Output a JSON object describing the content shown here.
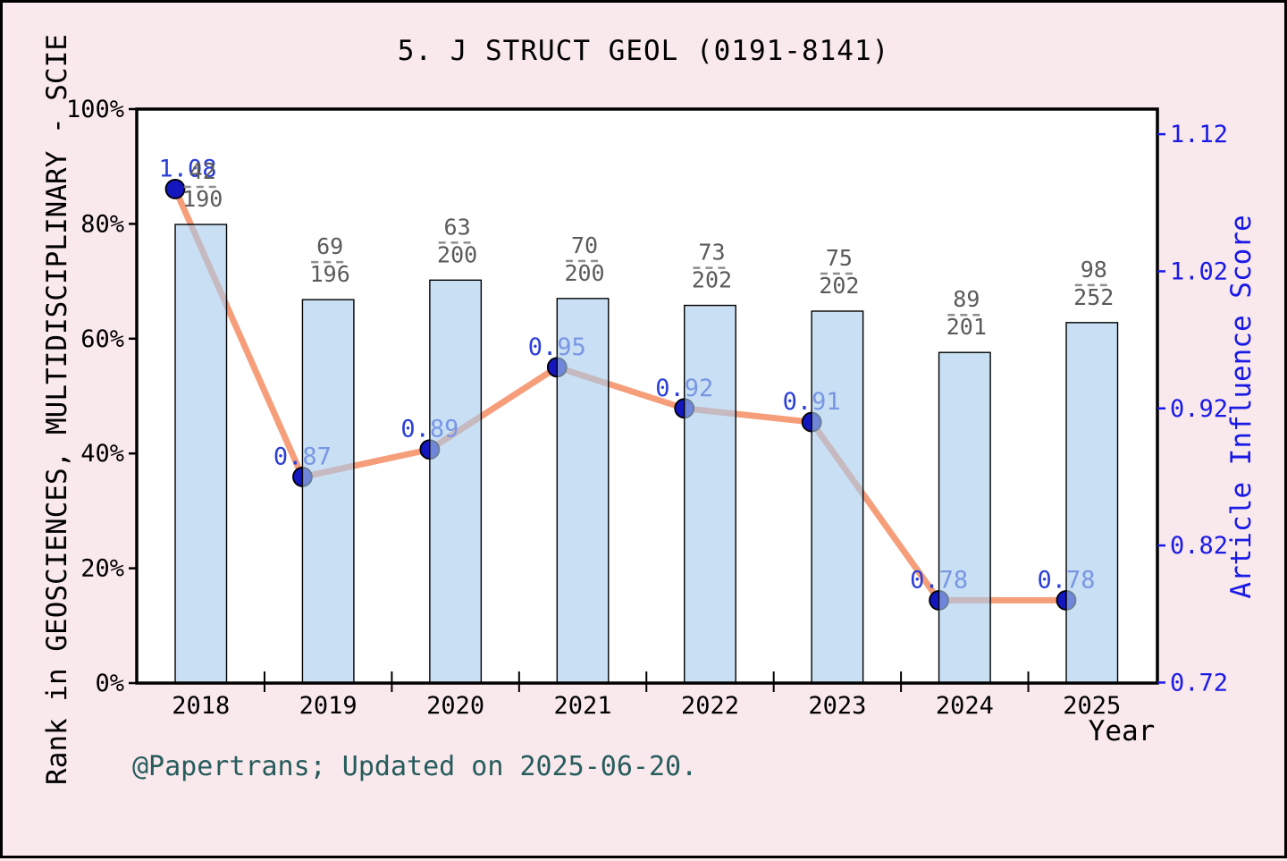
{
  "title": "5. J STRUCT GEOL (0191-8141)",
  "footer": "@Papertrans; Updated on 2025-06-20.",
  "colors": {
    "background": "#F9E8EC",
    "plot_background": "#FFFFFF",
    "bar_fill": "#A8CCEC",
    "bar_border": "#000000",
    "line": "#F69E7A",
    "marker": "#1416BE",
    "value_label": "#2B3FD7",
    "right_axis_text": "#1A1AE6",
    "fraction_text": "#5A5A5A",
    "footer_text": "#265C5C"
  },
  "chart_data": {
    "type": "bar",
    "subtype": "bar+line combo, dual axis",
    "categories": [
      "2018",
      "2019",
      "2020",
      "2021",
      "2022",
      "2023",
      "2024",
      "2025"
    ],
    "xlabel": "Year",
    "series": [
      {
        "name": "Rank in GEOSCIENCES, MULTIDISCIPLINARY - SCIE",
        "type": "bar",
        "axis": "left",
        "unit": "percentile %",
        "values": [
          79.9,
          66.8,
          70.2,
          67.0,
          65.8,
          64.8,
          57.6,
          62.8
        ],
        "rank_labels": [
          "42/190",
          "69/196",
          "63/200",
          "70/200",
          "73/202",
          "75/202",
          "89/201",
          "98/252"
        ]
      },
      {
        "name": "Article Influence Score",
        "type": "line",
        "axis": "right",
        "values": [
          1.08,
          0.87,
          0.89,
          0.95,
          0.92,
          0.91,
          0.78,
          0.78
        ]
      }
    ],
    "left_axis": {
      "label": "Rank in GEOSCIENCES, MULTIDISCIPLINARY - SCIE",
      "ticks": [
        "0%",
        "20%",
        "40%",
        "60%",
        "80%",
        "100%"
      ],
      "range": [
        0,
        100
      ]
    },
    "right_axis": {
      "label": "Article Influence Score",
      "ticks": [
        "0.72",
        "0.82",
        "0.92",
        "1.02",
        "1.12"
      ],
      "range": [
        0.72,
        1.12
      ]
    },
    "legend": "none",
    "grid": false
  }
}
